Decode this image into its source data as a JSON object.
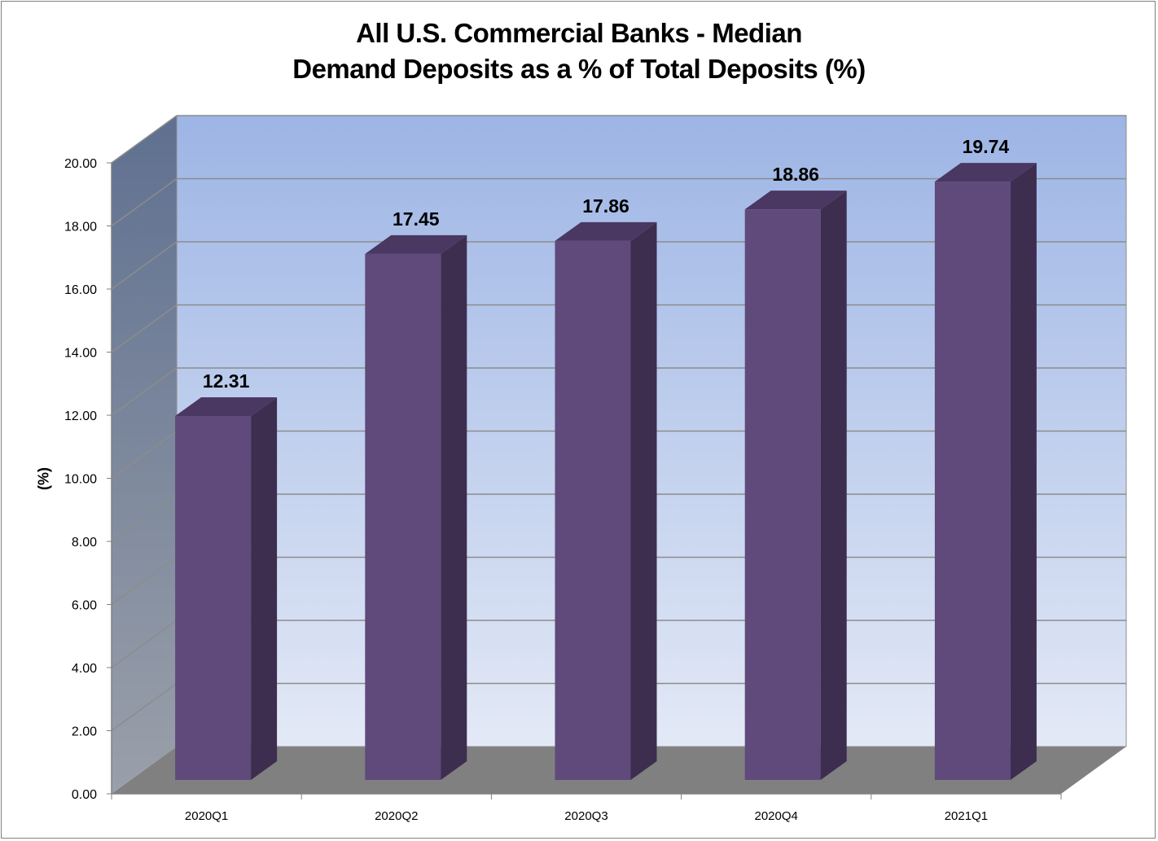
{
  "chart_data": {
    "type": "bar",
    "style": "3d-column",
    "title_lines": [
      "All U.S. Commercial Banks - Median",
      "Demand Deposits as a % of Total Deposits (%)"
    ],
    "xlabel": "",
    "ylabel": "(%)",
    "categories": [
      "2020Q1",
      "2020Q2",
      "2020Q3",
      "2020Q4",
      "2021Q1"
    ],
    "values": [
      12.31,
      17.45,
      17.86,
      18.86,
      19.74
    ],
    "value_labels": [
      "12.31",
      "17.45",
      "17.86",
      "18.86",
      "19.74"
    ],
    "ylim": [
      0,
      20
    ],
    "yticks": [
      "0.00",
      "2.00",
      "4.00",
      "6.00",
      "8.00",
      "10.00",
      "12.00",
      "14.00",
      "16.00",
      "18.00",
      "20.00"
    ],
    "grid": true,
    "legend": "none",
    "colors": {
      "bar_front": "#5f4a7b",
      "bar_side": "#3d2e50",
      "bar_top": "#4a3862",
      "back_wall_top": "#9db5e5",
      "back_wall_bottom": "#e3e9f6",
      "side_wall_top": "#5f7090",
      "side_wall_bottom": "#9aa0aa",
      "floor": "#808080",
      "gridline": "#8c8c8c"
    }
  }
}
